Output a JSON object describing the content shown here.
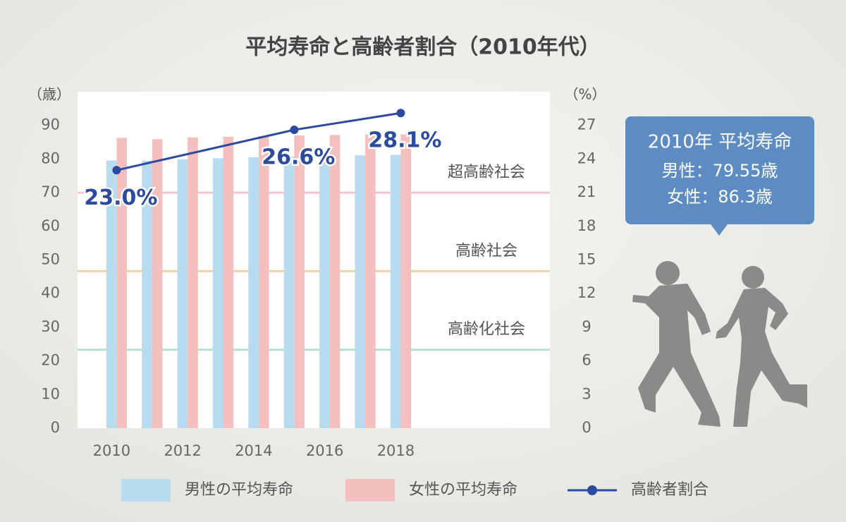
{
  "chart_data": {
    "type": "bar",
    "title": "平均寿命と高齢者割合（2010年代）",
    "y_label": "（歳）",
    "y2_label": "（%）",
    "x": [
      2010,
      2011,
      2012,
      2013,
      2014,
      2015,
      2016,
      2017,
      2018
    ],
    "xlim": [
      2008.9,
      2022.2
    ],
    "xticks": [
      2010,
      2012,
      2014,
      2016,
      2018
    ],
    "ylim": [
      0,
      100
    ],
    "yticks": [
      0,
      10,
      20,
      30,
      40,
      50,
      60,
      70,
      80,
      90
    ],
    "y2lim": [
      0,
      30
    ],
    "y2ticks": [
      0,
      3,
      6,
      9,
      12,
      15,
      18,
      21,
      24,
      27
    ],
    "series": [
      {
        "name": "男性の平均寿命",
        "color": "#b7dbef",
        "values": [
          79.55,
          79.44,
          79.94,
          80.21,
          80.5,
          80.75,
          80.98,
          81.09,
          81.25
        ]
      },
      {
        "name": "女性の平均寿命",
        "color": "#f3bfbf",
        "values": [
          86.3,
          85.9,
          86.41,
          86.61,
          86.83,
          86.99,
          87.14,
          87.26,
          87.32
        ]
      },
      {
        "name": "高齢者割合",
        "type": "line",
        "axis": "y2",
        "color": "#2c4a9e",
        "x": [
          2010,
          2015,
          2018
        ],
        "values": [
          23.0,
          26.6,
          28.1
        ],
        "value_labels": [
          "23.0%",
          "26.6%",
          "28.1%"
        ]
      }
    ],
    "reference_lines": [
      {
        "value": 21,
        "axis": "y2",
        "label": "超高齢社会",
        "color": "#f1c6d4"
      },
      {
        "value": 14,
        "axis": "y2",
        "label": "高齢社会",
        "color": "#f3d2a8"
      },
      {
        "value": 7,
        "axis": "y2",
        "label": "高齢化社会",
        "color": "#b6e0d6"
      }
    ],
    "callout": {
      "title": "2010年 平均寿命",
      "lines": [
        "男性：79.55歳",
        "女性：86.3歳"
      ]
    },
    "legend": "bottom"
  }
}
